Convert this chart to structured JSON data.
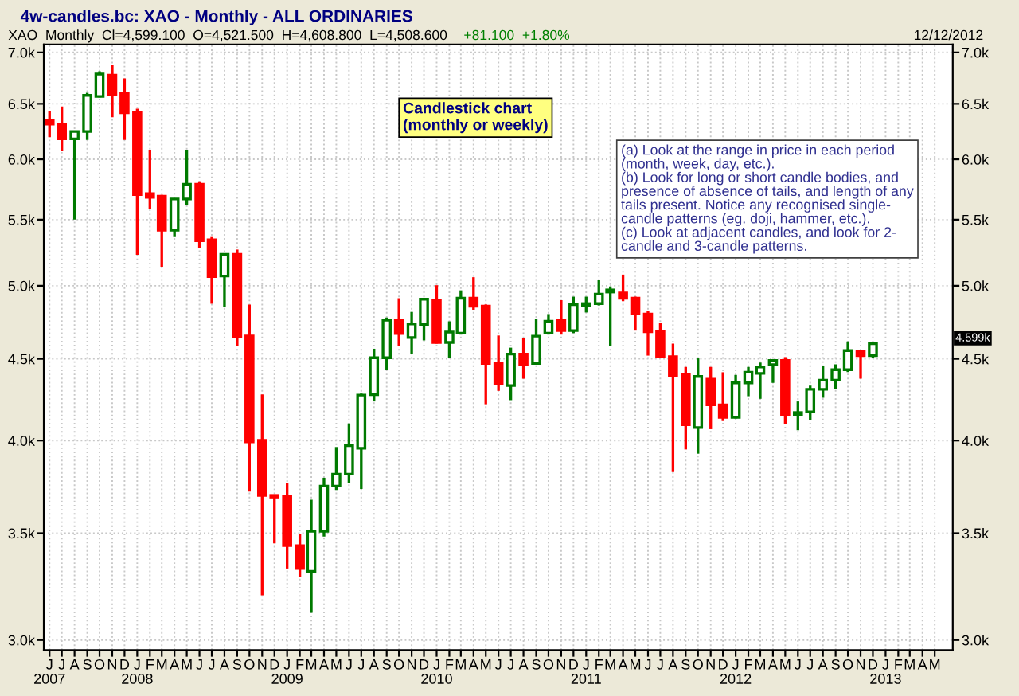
{
  "chart_data": {
    "type": "candlestick",
    "title": "4w-candles.bc: XAO - Monthly - ALL ORDINARIES",
    "x": [
      "2007-06",
      "2007-07",
      "2007-08",
      "2007-09",
      "2007-10",
      "2007-11",
      "2007-12",
      "2008-01",
      "2008-02",
      "2008-03",
      "2008-04",
      "2008-05",
      "2008-06",
      "2008-07",
      "2008-08",
      "2008-09",
      "2008-10",
      "2008-11",
      "2008-12",
      "2009-01",
      "2009-02",
      "2009-03",
      "2009-04",
      "2009-05",
      "2009-06",
      "2009-07",
      "2009-08",
      "2009-09",
      "2009-10",
      "2009-11",
      "2009-12",
      "2010-01",
      "2010-02",
      "2010-03",
      "2010-04",
      "2010-05",
      "2010-06",
      "2010-07",
      "2010-08",
      "2010-09",
      "2010-10",
      "2010-11",
      "2010-12",
      "2011-01",
      "2011-02",
      "2011-03",
      "2011-04",
      "2011-05",
      "2011-06",
      "2011-07",
      "2011-08",
      "2011-09",
      "2011-10",
      "2011-11",
      "2011-12",
      "2012-01",
      "2012-02",
      "2012-03",
      "2012-04",
      "2012-05",
      "2012-06",
      "2012-07",
      "2012-08",
      "2012-09",
      "2012-10",
      "2012-11",
      "2012-12"
    ],
    "ohlc": [
      [
        6346,
        6433,
        6194,
        6313
      ],
      [
        6313,
        6475,
        6073,
        6180
      ],
      [
        6180,
        6246,
        5500,
        6246
      ],
      [
        6246,
        6605,
        6170,
        6580
      ],
      [
        6570,
        6812,
        6560,
        6785
      ],
      [
        6774,
        6879,
        6375,
        6590
      ],
      [
        6599,
        6742,
        6170,
        6416
      ],
      [
        6420,
        6455,
        5228,
        5703
      ],
      [
        5711,
        6084,
        5584,
        5680
      ],
      [
        5689,
        5700,
        5139,
        5417
      ],
      [
        5417,
        5672,
        5370,
        5667
      ],
      [
        5667,
        6084,
        5617,
        5788
      ],
      [
        5788,
        5812,
        5282,
        5335
      ],
      [
        5343,
        5370,
        4872,
        5066
      ],
      [
        5071,
        5240,
        4849,
        5232
      ],
      [
        5232,
        5268,
        4582,
        4644
      ],
      [
        4651,
        4866,
        3716,
        3993
      ],
      [
        4001,
        4275,
        3200,
        3696
      ],
      [
        3696,
        3700,
        3449,
        3687
      ],
      [
        3689,
        3763,
        3326,
        3438
      ],
      [
        3438,
        3497,
        3285,
        3326
      ],
      [
        3313,
        3673,
        3120,
        3510
      ],
      [
        3510,
        3791,
        3483,
        3746
      ],
      [
        3746,
        3963,
        3725,
        3811
      ],
      [
        3811,
        4100,
        3763,
        3971
      ],
      [
        3956,
        4280,
        3730,
        4271
      ],
      [
        4274,
        4566,
        4232,
        4507
      ],
      [
        4507,
        4776,
        4430,
        4758
      ],
      [
        4758,
        4911,
        4582,
        4667
      ],
      [
        4640,
        4815,
        4531,
        4732
      ],
      [
        4730,
        4910,
        4621,
        4904
      ],
      [
        4897,
        5004,
        4600,
        4608
      ],
      [
        4608,
        4750,
        4507,
        4677
      ],
      [
        4670,
        4967,
        4660,
        4911
      ],
      [
        4911,
        5062,
        4830,
        4855
      ],
      [
        4855,
        4867,
        4215,
        4470
      ],
      [
        4470,
        4654,
        4297,
        4340
      ],
      [
        4330,
        4573,
        4240,
        4531
      ],
      [
        4531,
        4636,
        4373,
        4462
      ],
      [
        4470,
        4765,
        4462,
        4650
      ],
      [
        4670,
        4800,
        4660,
        4750
      ],
      [
        4758,
        4897,
        4660,
        4687
      ],
      [
        4687,
        4922,
        4670,
        4866
      ],
      [
        4860,
        4922,
        4811,
        4873
      ],
      [
        4873,
        5043,
        4860,
        4940
      ],
      [
        4955,
        4995,
        4582,
        4970
      ],
      [
        4948,
        5081,
        4890,
        4911
      ],
      [
        4911,
        4922,
        4687,
        4800
      ],
      [
        4800,
        4822,
        4521,
        4680
      ],
      [
        4680,
        4740,
        4507,
        4514
      ],
      [
        4514,
        4600,
        3822,
        4390
      ],
      [
        4397,
        4448,
        3949,
        4092
      ],
      [
        4076,
        4503,
        3925,
        4387
      ],
      [
        4370,
        4448,
        4066,
        4211
      ],
      [
        4211,
        4414,
        4114,
        4136
      ],
      [
        4136,
        4397,
        4130,
        4347
      ],
      [
        4347,
        4448,
        4264,
        4414
      ],
      [
        4407,
        4476,
        4248,
        4448
      ],
      [
        4462,
        4495,
        4347,
        4490
      ],
      [
        4490,
        4511,
        4098,
        4153
      ],
      [
        4153,
        4232,
        4060,
        4165
      ],
      [
        4169,
        4330,
        4120,
        4307
      ],
      [
        4307,
        4455,
        4254,
        4364
      ],
      [
        4364,
        4465,
        4307,
        4430
      ],
      [
        4430,
        4615,
        4415,
        4554
      ],
      [
        4548,
        4555,
        4373,
        4521
      ],
      [
        4521.5,
        4608.8,
        4508.6,
        4599.1
      ]
    ],
    "colors": [
      "#ff0000",
      "#ff0000",
      "#007a00",
      "#007a00",
      "#007a00",
      "#ff0000",
      "#ff0000",
      "#ff0000",
      "#ff0000",
      "#ff0000",
      "#007a00",
      "#007a00",
      "#ff0000",
      "#ff0000",
      "#007a00",
      "#ff0000",
      "#ff0000",
      "#ff0000",
      "#ff0000",
      "#ff0000",
      "#ff0000",
      "#007a00",
      "#007a00",
      "#007a00",
      "#007a00",
      "#007a00",
      "#007a00",
      "#007a00",
      "#ff0000",
      "#007a00",
      "#007a00",
      "#ff0000",
      "#007a00",
      "#007a00",
      "#ff0000",
      "#ff0000",
      "#ff0000",
      "#007a00",
      "#ff0000",
      "#007a00",
      "#007a00",
      "#ff0000",
      "#007a00",
      "#007a00",
      "#007a00",
      "#007a00",
      "#ff0000",
      "#ff0000",
      "#ff0000",
      "#ff0000",
      "#ff0000",
      "#ff0000",
      "#007a00",
      "#ff0000",
      "#ff0000",
      "#007a00",
      "#007a00",
      "#007a00",
      "#007a00",
      "#ff0000",
      "#007a00",
      "#007a00",
      "#007a00",
      "#007a00",
      "#007a00",
      "#ff0000",
      "#007a00"
    ],
    "log": true,
    "ylim": [
      2957,
      7080
    ],
    "yticks": [
      {
        "value": 3000,
        "label": "3.0k"
      },
      {
        "value": 3500,
        "label": "3.5k"
      },
      {
        "value": 4000,
        "label": "4.0k"
      },
      {
        "value": 4500,
        "label": "4.5k"
      },
      {
        "value": 5000,
        "label": "5.0k"
      },
      {
        "value": 5500,
        "label": "5.5k"
      },
      {
        "value": 6000,
        "label": "6.0k"
      },
      {
        "value": 6500,
        "label": "6.5k"
      },
      {
        "value": 7000,
        "label": "7.0k"
      }
    ],
    "xlim": [
      "2007-05-18",
      "2013-06-14"
    ],
    "xticks": [
      {
        "value": "2007-06",
        "label": "J\n2007"
      },
      {
        "value": "2007-07",
        "label": "J"
      },
      {
        "value": "2007-08",
        "label": "A"
      },
      {
        "value": "2007-09",
        "label": "S"
      },
      {
        "value": "2007-10",
        "label": "O"
      },
      {
        "value": "2007-11",
        "label": "N"
      },
      {
        "value": "2007-12",
        "label": "D"
      },
      {
        "value": "2008-01",
        "label": "J\n2008"
      },
      {
        "value": "2008-02",
        "label": "F"
      },
      {
        "value": "2008-03",
        "label": "M"
      },
      {
        "value": "2008-04",
        "label": "A"
      },
      {
        "value": "2008-05",
        "label": "M"
      },
      {
        "value": "2008-06",
        "label": "J"
      },
      {
        "value": "2008-07",
        "label": "J"
      },
      {
        "value": "2008-08",
        "label": "A"
      },
      {
        "value": "2008-09",
        "label": "S"
      },
      {
        "value": "2008-10",
        "label": "O"
      },
      {
        "value": "2008-11",
        "label": "N"
      },
      {
        "value": "2008-12",
        "label": "D"
      },
      {
        "value": "2009-01",
        "label": "J\n2009"
      },
      {
        "value": "2009-02",
        "label": "F"
      },
      {
        "value": "2009-03",
        "label": "M"
      },
      {
        "value": "2009-04",
        "label": "A"
      },
      {
        "value": "2009-05",
        "label": "M"
      },
      {
        "value": "2009-06",
        "label": "J"
      },
      {
        "value": "2009-07",
        "label": "J"
      },
      {
        "value": "2009-08",
        "label": "A"
      },
      {
        "value": "2009-09",
        "label": "S"
      },
      {
        "value": "2009-10",
        "label": "O"
      },
      {
        "value": "2009-11",
        "label": "N"
      },
      {
        "value": "2009-12",
        "label": "D"
      },
      {
        "value": "2010-01",
        "label": "J\n2010"
      },
      {
        "value": "2010-02",
        "label": "F"
      },
      {
        "value": "2010-03",
        "label": "M"
      },
      {
        "value": "2010-04",
        "label": "A"
      },
      {
        "value": "2010-05",
        "label": "M"
      },
      {
        "value": "2010-06",
        "label": "J"
      },
      {
        "value": "2010-07",
        "label": "J"
      },
      {
        "value": "2010-08",
        "label": "A"
      },
      {
        "value": "2010-09",
        "label": "S"
      },
      {
        "value": "2010-10",
        "label": "O"
      },
      {
        "value": "2010-11",
        "label": "N"
      },
      {
        "value": "2010-12",
        "label": "D"
      },
      {
        "value": "2011-01",
        "label": "J\n2011"
      },
      {
        "value": "2011-02",
        "label": "F"
      },
      {
        "value": "2011-03",
        "label": "M"
      },
      {
        "value": "2011-04",
        "label": "A"
      },
      {
        "value": "2011-05",
        "label": "M"
      },
      {
        "value": "2011-06",
        "label": "J"
      },
      {
        "value": "2011-07",
        "label": "J"
      },
      {
        "value": "2011-08",
        "label": "A"
      },
      {
        "value": "2011-09",
        "label": "S"
      },
      {
        "value": "2011-10",
        "label": "O"
      },
      {
        "value": "2011-11",
        "label": "N"
      },
      {
        "value": "2011-12",
        "label": "D"
      },
      {
        "value": "2012-01",
        "label": "J\n2012"
      },
      {
        "value": "2012-02",
        "label": "F"
      },
      {
        "value": "2012-03",
        "label": "M"
      },
      {
        "value": "2012-04",
        "label": "A"
      },
      {
        "value": "2012-05",
        "label": "M"
      },
      {
        "value": "2012-06",
        "label": "J"
      },
      {
        "value": "2012-07",
        "label": "J"
      },
      {
        "value": "2012-08",
        "label": "A"
      },
      {
        "value": "2012-09",
        "label": "S"
      },
      {
        "value": "2012-10",
        "label": "O"
      },
      {
        "value": "2012-11",
        "label": "N"
      },
      {
        "value": "2012-12",
        "label": "D"
      },
      {
        "value": "2013-01",
        "label": "J\n2013"
      },
      {
        "value": "2013-02",
        "label": "F"
      },
      {
        "value": "2013-03",
        "label": "M"
      },
      {
        "value": "2013-04",
        "label": "A"
      },
      {
        "value": "2013-05",
        "label": "M"
      }
    ],
    "grid": true,
    "annotations": [
      "XAO  Monthly  Cl=4,599.100  O=4,521.500  H=4,608.800  L=4,508.600",
      "+81.100  +1.80%",
      "12/12/2012",
      "Candlestick chart\n(monthly or weekly)",
      "(a) Look at the range in price in each period\n(month, week, day, etc.).\n(b) Look for long or short candle bodies, and\npresence of absence of tails, and length of any\ntails present. Notice any recognised single-\ncandle patterns (eg. doji, hammer, etc.).\n(c) Look at adjacent candles, and look for 2-\ncandle and 3-candle patterns.",
      "4.599k"
    ]
  }
}
